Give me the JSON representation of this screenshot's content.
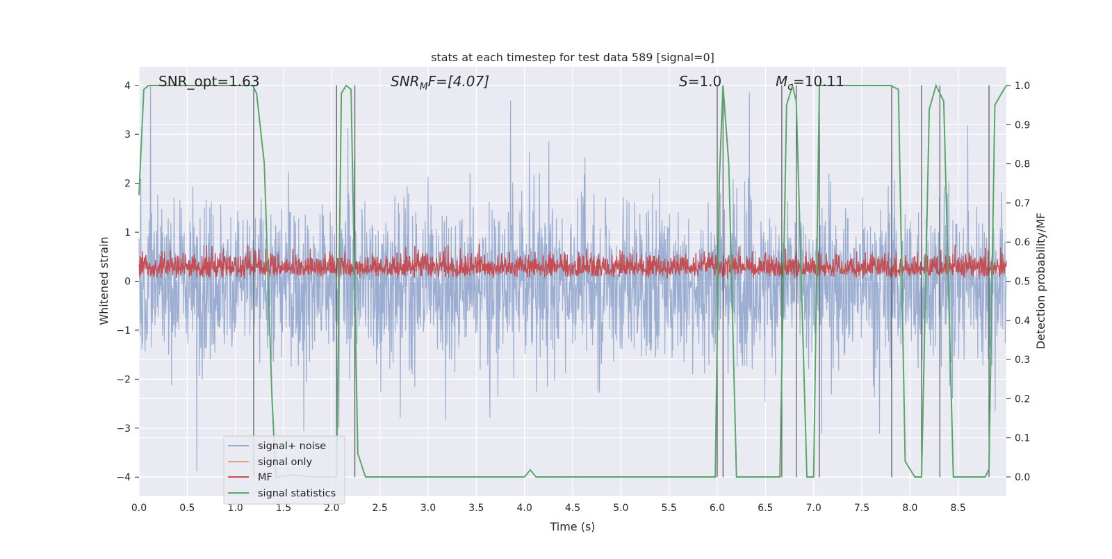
{
  "chart_data": {
    "type": "line",
    "title": "stats at each timestep for test data 589 [signal=0]",
    "xlabel": "Time (s)",
    "ylabel_left": "Whitened strain",
    "ylabel_right": "Detection probability/MF",
    "xlim": [
      0.0,
      9.0
    ],
    "ylim_left": [
      -4.38,
      4.38
    ],
    "ylim_right": [
      -0.048,
      1.048
    ],
    "x_ticks": [
      "0.0",
      "0.5",
      "1.0",
      "1.5",
      "2.0",
      "2.5",
      "3.0",
      "3.5",
      "4.0",
      "4.5",
      "5.0",
      "5.5",
      "6.0",
      "6.5",
      "7.0",
      "7.5",
      "8.0",
      "8.5"
    ],
    "y_ticks_left": [
      "−4",
      "−3",
      "−2",
      "−1",
      "0",
      "1",
      "2",
      "3",
      "4"
    ],
    "y_ticks_right": [
      "0.0",
      "0.1",
      "0.2",
      "0.3",
      "0.4",
      "0.5",
      "0.6",
      "0.7",
      "0.8",
      "0.9",
      "1.0"
    ],
    "grid": true,
    "legend_position": "lower-left",
    "annotations": {
      "snr_opt": "SNR_opt=1.63",
      "snr_mf_sym": "SNR",
      "snr_mf_sub": "M",
      "snr_mf_rest": "F=[4.07]",
      "s_sym": "S",
      "s_rest": "=1.0",
      "mc_sym": "M",
      "mc_sub": "c",
      "mc_rest": "=10.11"
    },
    "series": [
      {
        "name": "signal+ noise",
        "color": "#4c72b0",
        "alpha": 0.5,
        "axis": "left",
        "amplitude_range": [
          -4.0,
          4.0
        ],
        "note_values": "dense noise, envelope ~±2.5"
      },
      {
        "name": "signal only",
        "color": "#dd8452",
        "axis": "left",
        "values": []
      },
      {
        "name": "MF",
        "color": "#c44e52",
        "axis": "left",
        "amplitude_range": [
          0.0,
          0.9
        ]
      },
      {
        "name": "signal statistics",
        "color": "#55a868",
        "axis": "right",
        "x": [
          0.0,
          0.05,
          0.1,
          1.18,
          1.22,
          1.3,
          1.38,
          1.42,
          1.6,
          1.8,
          2.0,
          2.05,
          2.1,
          2.15,
          2.2,
          2.27,
          2.35,
          2.4,
          4.0,
          4.06,
          4.12,
          5.98,
          6.02,
          6.06,
          6.12,
          6.2,
          6.3,
          6.65,
          6.72,
          6.78,
          6.82,
          6.93,
          7.0,
          7.06,
          7.12,
          7.8,
          7.88,
          7.95,
          8.05,
          8.12,
          8.2,
          8.27,
          8.35,
          8.45,
          8.78,
          8.82,
          8.88,
          8.95,
          9.0
        ],
        "values": [
          0.72,
          0.99,
          1.0,
          1.0,
          0.98,
          0.8,
          0.2,
          0.0,
          0.005,
          0.0,
          0.0,
          0.0,
          0.98,
          1.0,
          0.99,
          0.06,
          0.0,
          0.0,
          0.0,
          0.018,
          0.0,
          0.0,
          0.75,
          1.0,
          0.8,
          0.0,
          0.0,
          0.0,
          0.95,
          1.0,
          0.96,
          0.0,
          0.0,
          1.0,
          1.0,
          1.0,
          0.99,
          0.04,
          0.0,
          0.0,
          0.94,
          1.0,
          0.96,
          0.0,
          0.0,
          0.02,
          0.95,
          0.98,
          1.0
        ]
      }
    ],
    "vertical_markers": [
      1.19,
      2.05,
      2.24,
      6.0,
      6.06,
      6.67,
      6.82,
      7.06,
      7.81,
      8.12,
      8.31,
      8.82
    ]
  }
}
